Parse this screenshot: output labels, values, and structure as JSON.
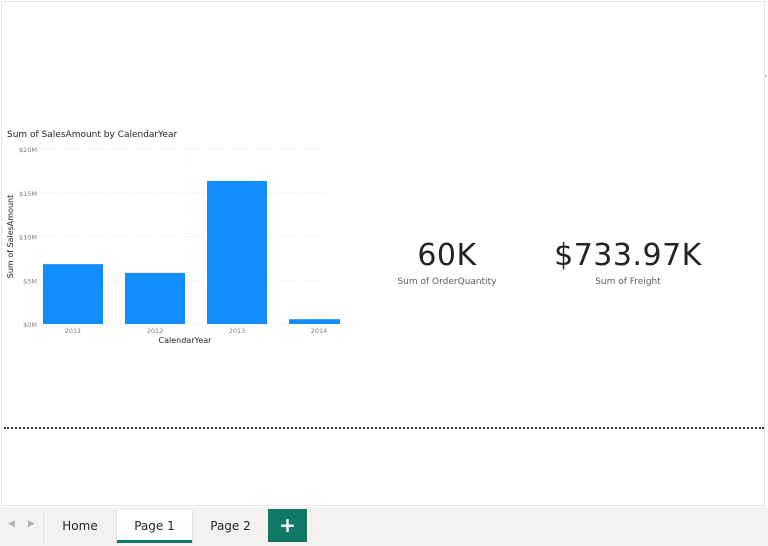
{
  "report": {
    "visual_title": "Sum of SalesAmount by CalendarYear",
    "kpis": [
      {
        "value": "60K",
        "label": "Sum of OrderQuantity"
      },
      {
        "value": "$733.97K",
        "label": "Sum of Freight"
      }
    ]
  },
  "chart_data": {
    "type": "bar",
    "title": "Sum of SalesAmount by CalendarYear",
    "xlabel": "CalendarYear",
    "ylabel": "Sum of SalesAmount",
    "categories": [
      "2011",
      "2012",
      "2013",
      "2014"
    ],
    "values": [
      6.84,
      5.84,
      16.35,
      0.55
    ],
    "value_unit": "$M",
    "ylim": [
      0,
      20
    ],
    "yticks": [
      0,
      5,
      10,
      15,
      20
    ],
    "ytick_labels": [
      "$0M",
      "$5M",
      "$10M",
      "$15M",
      "$20M"
    ],
    "grid": true,
    "bar_color": "#118dff"
  },
  "tabs": {
    "items": [
      {
        "label": "Home",
        "active": false
      },
      {
        "label": "Page 1",
        "active": true
      },
      {
        "label": "Page 2",
        "active": false
      }
    ],
    "add_label": "+",
    "prev_arrow": "◀",
    "next_arrow": "▶",
    "accent": "#117865"
  }
}
